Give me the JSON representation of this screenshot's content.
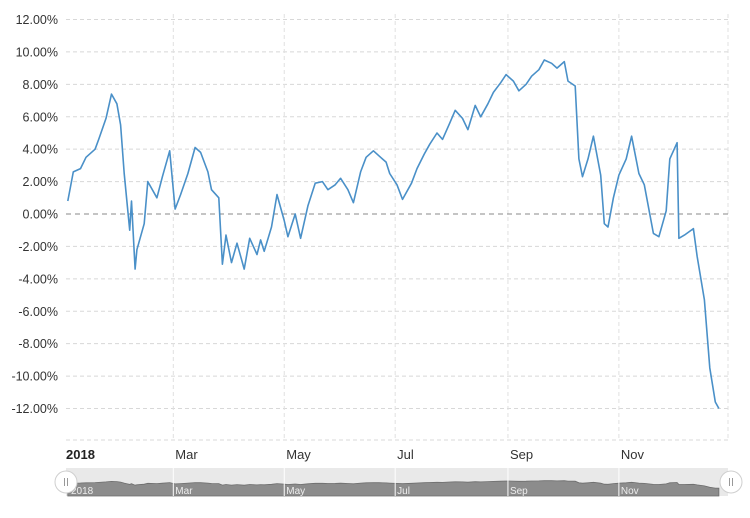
{
  "chart_data": {
    "type": "line",
    "title": "",
    "xlabel": "",
    "ylabel": "",
    "ylim": [
      -14,
      12
    ],
    "y_ticks": [
      "12.00%",
      "10.00%",
      "8.00%",
      "6.00%",
      "4.00%",
      "2.00%",
      "0.00%",
      "-2.00%",
      "-4.00%",
      "-6.00%",
      "-8.00%",
      "-10.00%",
      "-12.00%"
    ],
    "y_tick_values": [
      12,
      10,
      8,
      6,
      4,
      2,
      0,
      -2,
      -4,
      -6,
      -8,
      -10,
      -12
    ],
    "x_ticks": [
      {
        "label": "2018",
        "date": "2018-01-01",
        "bold": true
      },
      {
        "label": "Mar",
        "date": "2018-03-01",
        "bold": false
      },
      {
        "label": "May",
        "date": "2018-05-01",
        "bold": false
      },
      {
        "label": "Jul",
        "date": "2018-07-01",
        "bold": false
      },
      {
        "label": "Sep",
        "date": "2018-09-01",
        "bold": false
      },
      {
        "label": "Nov",
        "date": "2018-11-01",
        "bold": false
      }
    ],
    "xlim": [
      "2018-01-01",
      "2018-12-31"
    ],
    "grid": true,
    "zero_line": "dashed",
    "series": [
      {
        "line_color": "#4a90c8",
        "points": [
          [
            "2018-01-02",
            0.8
          ],
          [
            "2018-01-05",
            2.6
          ],
          [
            "2018-01-09",
            2.8
          ],
          [
            "2018-01-12",
            3.5
          ],
          [
            "2018-01-17",
            4.0
          ],
          [
            "2018-01-19",
            4.6
          ],
          [
            "2018-01-23",
            5.9
          ],
          [
            "2018-01-26",
            7.4
          ],
          [
            "2018-01-29",
            6.8
          ],
          [
            "2018-01-31",
            5.5
          ],
          [
            "2018-02-02",
            2.5
          ],
          [
            "2018-02-05",
            -1.0
          ],
          [
            "2018-02-06",
            0.8
          ],
          [
            "2018-02-08",
            -3.4
          ],
          [
            "2018-02-09",
            -2.2
          ],
          [
            "2018-02-13",
            -0.6
          ],
          [
            "2018-02-15",
            2.0
          ],
          [
            "2018-02-20",
            1.0
          ],
          [
            "2018-02-23",
            2.3
          ],
          [
            "2018-02-27",
            3.9
          ],
          [
            "2018-03-02",
            0.3
          ],
          [
            "2018-03-05",
            1.2
          ],
          [
            "2018-03-09",
            2.5
          ],
          [
            "2018-03-13",
            4.1
          ],
          [
            "2018-03-16",
            3.8
          ],
          [
            "2018-03-20",
            2.6
          ],
          [
            "2018-03-22",
            1.5
          ],
          [
            "2018-03-26",
            1.0
          ],
          [
            "2018-03-28",
            -3.1
          ],
          [
            "2018-03-30",
            -1.3
          ],
          [
            "2018-04-02",
            -3.0
          ],
          [
            "2018-04-05",
            -1.8
          ],
          [
            "2018-04-09",
            -3.4
          ],
          [
            "2018-04-12",
            -1.5
          ],
          [
            "2018-04-16",
            -2.5
          ],
          [
            "2018-04-18",
            -1.6
          ],
          [
            "2018-04-20",
            -2.3
          ],
          [
            "2018-04-24",
            -0.8
          ],
          [
            "2018-04-27",
            1.2
          ],
          [
            "2018-05-01",
            -0.4
          ],
          [
            "2018-05-03",
            -1.4
          ],
          [
            "2018-05-07",
            0.0
          ],
          [
            "2018-05-10",
            -1.5
          ],
          [
            "2018-05-14",
            0.5
          ],
          [
            "2018-05-18",
            1.9
          ],
          [
            "2018-05-22",
            2.0
          ],
          [
            "2018-05-25",
            1.5
          ],
          [
            "2018-05-29",
            1.8
          ],
          [
            "2018-06-01",
            2.2
          ],
          [
            "2018-06-05",
            1.5
          ],
          [
            "2018-06-08",
            0.7
          ],
          [
            "2018-06-12",
            2.6
          ],
          [
            "2018-06-15",
            3.5
          ],
          [
            "2018-06-19",
            3.9
          ],
          [
            "2018-06-22",
            3.6
          ],
          [
            "2018-06-26",
            3.2
          ],
          [
            "2018-06-28",
            2.5
          ],
          [
            "2018-07-02",
            1.8
          ],
          [
            "2018-07-05",
            0.9
          ],
          [
            "2018-07-10",
            1.9
          ],
          [
            "2018-07-13",
            2.8
          ],
          [
            "2018-07-17",
            3.7
          ],
          [
            "2018-07-20",
            4.3
          ],
          [
            "2018-07-24",
            5.0
          ],
          [
            "2018-07-27",
            4.6
          ],
          [
            "2018-07-31",
            5.6
          ],
          [
            "2018-08-03",
            6.4
          ],
          [
            "2018-08-07",
            5.9
          ],
          [
            "2018-08-10",
            5.2
          ],
          [
            "2018-08-14",
            6.7
          ],
          [
            "2018-08-17",
            6.0
          ],
          [
            "2018-08-21",
            6.8
          ],
          [
            "2018-08-24",
            7.5
          ],
          [
            "2018-08-28",
            8.1
          ],
          [
            "2018-08-31",
            8.6
          ],
          [
            "2018-09-04",
            8.2
          ],
          [
            "2018-09-07",
            7.6
          ],
          [
            "2018-09-11",
            8.0
          ],
          [
            "2018-09-14",
            8.5
          ],
          [
            "2018-09-18",
            8.9
          ],
          [
            "2018-09-21",
            9.5
          ],
          [
            "2018-09-25",
            9.3
          ],
          [
            "2018-09-28",
            9.0
          ],
          [
            "2018-10-02",
            9.4
          ],
          [
            "2018-10-04",
            8.2
          ],
          [
            "2018-10-08",
            7.9
          ],
          [
            "2018-10-10",
            3.4
          ],
          [
            "2018-10-12",
            2.3
          ],
          [
            "2018-10-15",
            3.4
          ],
          [
            "2018-10-18",
            4.8
          ],
          [
            "2018-10-22",
            2.4
          ],
          [
            "2018-10-24",
            -0.6
          ],
          [
            "2018-10-26",
            -0.8
          ],
          [
            "2018-10-29",
            1.0
          ],
          [
            "2018-11-01",
            2.4
          ],
          [
            "2018-11-05",
            3.4
          ],
          [
            "2018-11-08",
            4.8
          ],
          [
            "2018-11-12",
            2.5
          ],
          [
            "2018-11-15",
            1.8
          ],
          [
            "2018-11-20",
            -1.2
          ],
          [
            "2018-11-23",
            -1.4
          ],
          [
            "2018-11-27",
            0.2
          ],
          [
            "2018-11-29",
            3.4
          ],
          [
            "2018-12-03",
            4.4
          ],
          [
            "2018-12-04",
            -1.5
          ],
          [
            "2018-12-07",
            -1.3
          ],
          [
            "2018-12-12",
            -0.9
          ],
          [
            "2018-12-14",
            -2.6
          ],
          [
            "2018-12-18",
            -5.3
          ],
          [
            "2018-12-21",
            -9.5
          ],
          [
            "2018-12-24",
            -11.6
          ],
          [
            "2018-12-26",
            -12.0
          ]
        ]
      }
    ]
  },
  "navigator": {
    "labels": [
      "2018",
      "Mar",
      "May",
      "Jul",
      "Sep",
      "Nov"
    ]
  }
}
